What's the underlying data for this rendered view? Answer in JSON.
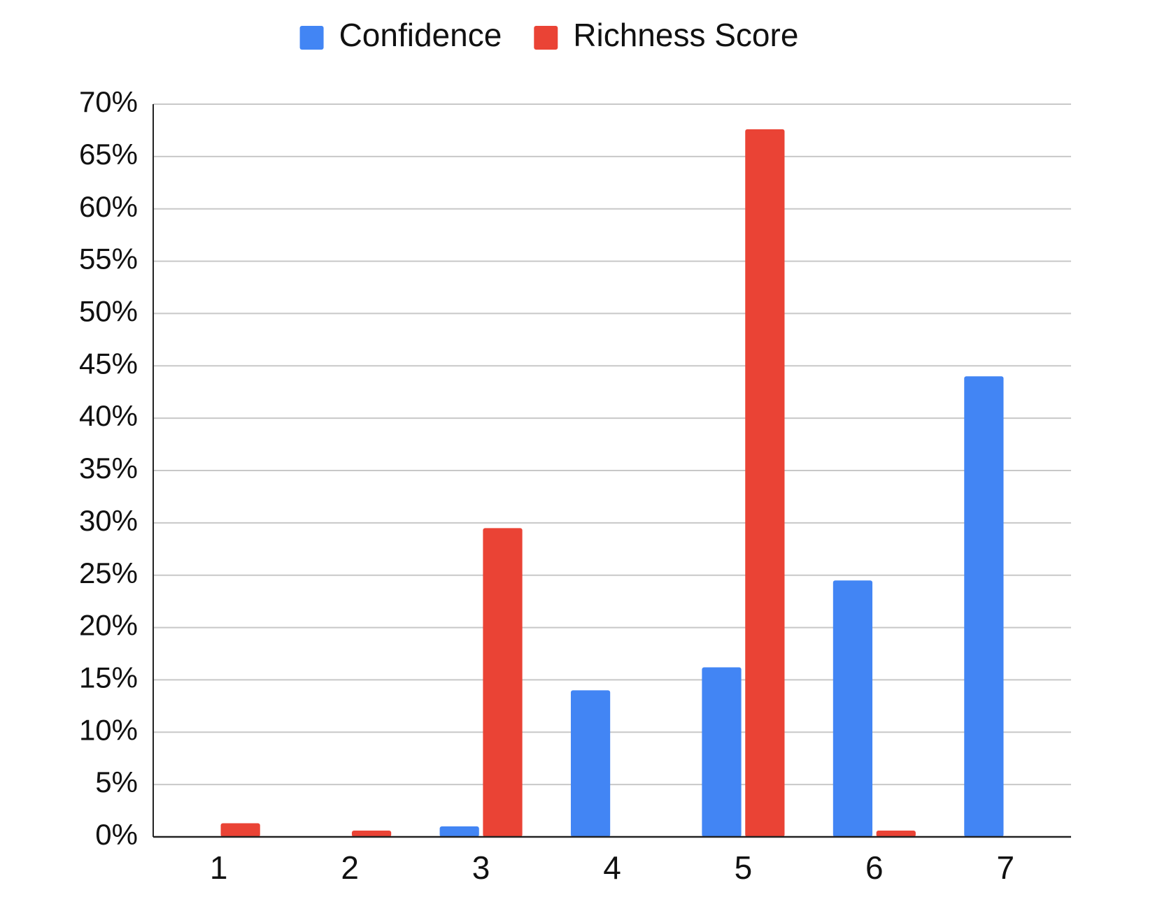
{
  "chart_data": {
    "type": "bar",
    "categories": [
      "1",
      "2",
      "3",
      "4",
      "5",
      "6",
      "7"
    ],
    "series": [
      {
        "name": "Confidence",
        "color": "#4285f4",
        "values": [
          0,
          0,
          1,
          14,
          16.2,
          24.5,
          44
        ]
      },
      {
        "name": "Richness Score",
        "color": "#ea4335",
        "values": [
          1.3,
          0.6,
          29.5,
          0,
          67.6,
          0.6,
          0
        ]
      }
    ],
    "ylim": [
      0,
      70
    ],
    "yticks": [
      {
        "value": 0,
        "label": "0%"
      },
      {
        "value": 5,
        "label": "5%"
      },
      {
        "value": 10,
        "label": "10%"
      },
      {
        "value": 15,
        "label": "15%"
      },
      {
        "value": 20,
        "label": "20%"
      },
      {
        "value": 25,
        "label": "25%"
      },
      {
        "value": 30,
        "label": "30%"
      },
      {
        "value": 35,
        "label": "35%"
      },
      {
        "value": 40,
        "label": "40%"
      },
      {
        "value": 45,
        "label": "45%"
      },
      {
        "value": 50,
        "label": "50%"
      },
      {
        "value": 55,
        "label": "55%"
      },
      {
        "value": 60,
        "label": "60%"
      },
      {
        "value": 65,
        "label": "65%"
      },
      {
        "value": 70,
        "label": "70%"
      }
    ],
    "grid": true,
    "legend": "top"
  }
}
